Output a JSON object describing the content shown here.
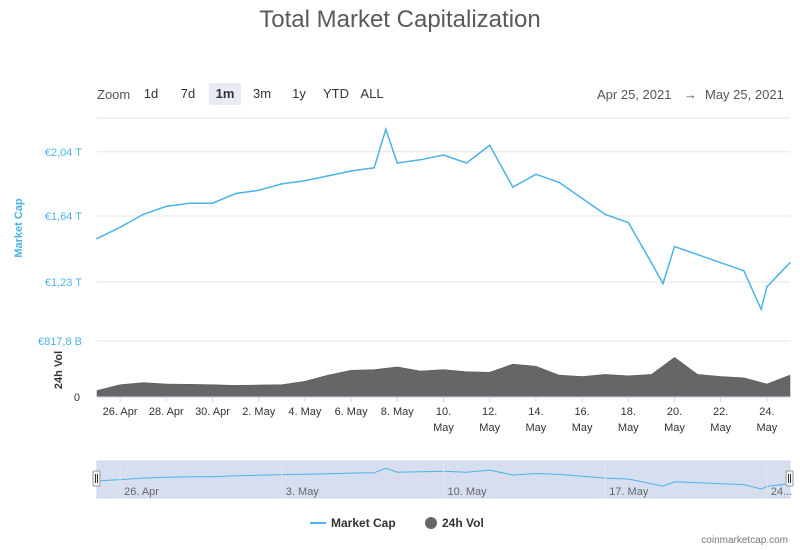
{
  "title": "Total Market Capitalization",
  "zoom": {
    "label": "Zoom",
    "buttons": [
      "1d",
      "7d",
      "1m",
      "3m",
      "1y",
      "YTD",
      "ALL"
    ],
    "active": "1m"
  },
  "range": {
    "from": "Apr 25, 2021",
    "arrow": "→",
    "to": "May 25, 2021"
  },
  "credit": "coinmarketcap.com",
  "colors": {
    "market_cap": "#4bb3e6",
    "volume": "#666666",
    "navigator_fill": "#ccd6eb"
  },
  "chart_data": {
    "type": "line",
    "x_range": [
      "2021-04-25",
      "2021-05-25"
    ],
    "series": [
      {
        "name": "Market Cap",
        "axis": "Market Cap",
        "points": [
          [
            "2021-04-25",
            1.5
          ],
          [
            "2021-04-26",
            1.57
          ],
          [
            "2021-04-27",
            1.65
          ],
          [
            "2021-04-28",
            1.7
          ],
          [
            "2021-04-29",
            1.72
          ],
          [
            "2021-04-30",
            1.72
          ],
          [
            "2021-05-01",
            1.78
          ],
          [
            "2021-05-02",
            1.8
          ],
          [
            "2021-05-03",
            1.84
          ],
          [
            "2021-05-04",
            1.86
          ],
          [
            "2021-05-05",
            1.89
          ],
          [
            "2021-05-06",
            1.92
          ],
          [
            "2021-05-07",
            1.94
          ],
          [
            "2021-05-07T12",
            2.18
          ],
          [
            "2021-05-08",
            1.97
          ],
          [
            "2021-05-09",
            1.99
          ],
          [
            "2021-05-10",
            2.02
          ],
          [
            "2021-05-11",
            1.97
          ],
          [
            "2021-05-12",
            2.08
          ],
          [
            "2021-05-13",
            1.82
          ],
          [
            "2021-05-14",
            1.9
          ],
          [
            "2021-05-15",
            1.85
          ],
          [
            "2021-05-16",
            1.75
          ],
          [
            "2021-05-17",
            1.65
          ],
          [
            "2021-05-18",
            1.6
          ],
          [
            "2021-05-19",
            1.35
          ],
          [
            "2021-05-19T12",
            1.22
          ],
          [
            "2021-05-20",
            1.45
          ],
          [
            "2021-05-21",
            1.4
          ],
          [
            "2021-05-22",
            1.35
          ],
          [
            "2021-05-23",
            1.3
          ],
          [
            "2021-05-23T18",
            1.06
          ],
          [
            "2021-05-24",
            1.2
          ],
          [
            "2021-05-25",
            1.35
          ]
        ]
      },
      {
        "name": "24h Vol",
        "axis": "24h Vol",
        "type": "area",
        "points": [
          [
            "2021-04-25",
            95
          ],
          [
            "2021-04-26",
            180
          ],
          [
            "2021-04-27",
            210
          ],
          [
            "2021-04-28",
            190
          ],
          [
            "2021-04-29",
            185
          ],
          [
            "2021-04-30",
            180
          ],
          [
            "2021-05-01",
            170
          ],
          [
            "2021-05-02",
            175
          ],
          [
            "2021-05-03",
            180
          ],
          [
            "2021-05-04",
            230
          ],
          [
            "2021-05-05",
            320
          ],
          [
            "2021-05-06",
            390
          ],
          [
            "2021-05-07",
            400
          ],
          [
            "2021-05-08",
            440
          ],
          [
            "2021-05-09",
            380
          ],
          [
            "2021-05-10",
            400
          ],
          [
            "2021-05-11",
            370
          ],
          [
            "2021-05-12",
            360
          ],
          [
            "2021-05-13",
            480
          ],
          [
            "2021-05-14",
            450
          ],
          [
            "2021-05-15",
            320
          ],
          [
            "2021-05-16",
            300
          ],
          [
            "2021-05-17",
            330
          ],
          [
            "2021-05-18",
            310
          ],
          [
            "2021-05-19",
            330
          ],
          [
            "2021-05-20",
            580
          ],
          [
            "2021-05-21",
            330
          ],
          [
            "2021-05-22",
            300
          ],
          [
            "2021-05-23",
            280
          ],
          [
            "2021-05-24",
            190
          ],
          [
            "2021-05-25",
            320
          ]
        ]
      }
    ],
    "y_axes": [
      {
        "title": "Market Cap",
        "ticks": [
          "€2,04 T",
          "€1,64 T",
          "€1,23 T"
        ],
        "tick_values": [
          2.04,
          1.64,
          1.23
        ],
        "range": [
          0.9,
          2.25
        ]
      },
      {
        "title": "24h Vol",
        "ticks": [
          "€817,8 B",
          "0"
        ],
        "tick_values": [
          817.8,
          0
        ],
        "range": [
          0,
          817.8
        ]
      }
    ],
    "x_ticks": [
      {
        "date": "2021-04-26",
        "l1": "26. Apr",
        "l2": ""
      },
      {
        "date": "2021-04-28",
        "l1": "28. Apr",
        "l2": ""
      },
      {
        "date": "2021-04-30",
        "l1": "30. Apr",
        "l2": ""
      },
      {
        "date": "2021-05-02",
        "l1": "2. May",
        "l2": ""
      },
      {
        "date": "2021-05-04",
        "l1": "4. May",
        "l2": ""
      },
      {
        "date": "2021-05-06",
        "l1": "6. May",
        "l2": ""
      },
      {
        "date": "2021-05-08",
        "l1": "8. May",
        "l2": ""
      },
      {
        "date": "2021-05-10",
        "l1": "10.",
        "l2": "May"
      },
      {
        "date": "2021-05-12",
        "l1": "12.",
        "l2": "May"
      },
      {
        "date": "2021-05-14",
        "l1": "14.",
        "l2": "May"
      },
      {
        "date": "2021-05-16",
        "l1": "16.",
        "l2": "May"
      },
      {
        "date": "2021-05-18",
        "l1": "18.",
        "l2": "May"
      },
      {
        "date": "2021-05-20",
        "l1": "20.",
        "l2": "May"
      },
      {
        "date": "2021-05-22",
        "l1": "22.",
        "l2": "May"
      },
      {
        "date": "2021-05-24",
        "l1": "24.",
        "l2": "May"
      }
    ],
    "navigator": {
      "ticks": [
        {
          "date": "2021-04-26",
          "label": "26. Apr"
        },
        {
          "date": "2021-05-03",
          "label": "3. May"
        },
        {
          "date": "2021-05-10",
          "label": "10. May"
        },
        {
          "date": "2021-05-17",
          "label": "17. May"
        },
        {
          "date": "2021-05-24",
          "label": "24..."
        }
      ]
    },
    "legend": [
      {
        "name": "Market Cap",
        "symbol": "line"
      },
      {
        "name": "24h Vol",
        "symbol": "circle"
      }
    ],
    "legend_position": "bottom-center",
    "grid": true
  }
}
